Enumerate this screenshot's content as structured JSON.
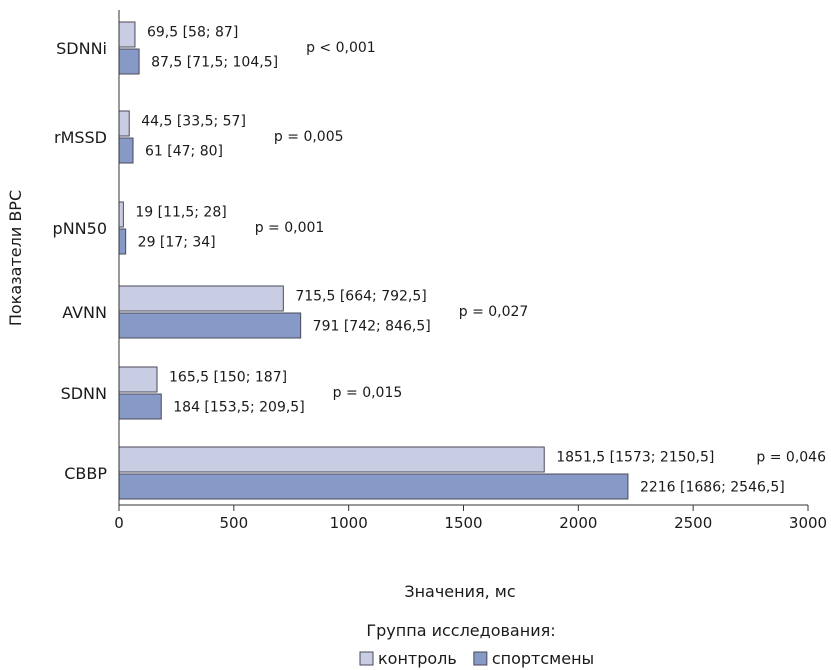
{
  "chart_data": {
    "type": "bar",
    "orientation": "horizontal",
    "xlabel": "Значения, мс",
    "ylabel": "Показатели ВРС",
    "xlim": [
      0,
      3000
    ],
    "x_ticks": [
      "0",
      "500",
      "1000",
      "1500",
      "2000",
      "2500",
      "3000"
    ],
    "grid": false,
    "legend_title": "Группа исследования:",
    "legend_position": "bottom-center",
    "categories": [
      "SDNNi",
      "rMSSD",
      "pNN50",
      "AVNN",
      "SDNN",
      "СВВР"
    ],
    "series": [
      {
        "name": "контроль",
        "color": "#c9cde3",
        "values": [
          69.5,
          44.5,
          19,
          715.5,
          165.5,
          1851.5
        ],
        "labels": [
          "69,5 [58; 87]",
          "44,5 [33,5; 57]",
          "19 [11,5; 28]",
          "715,5 [664; 792,5]",
          "165,5 [150; 187]",
          "1851,5 [1573; 2150,5]"
        ]
      },
      {
        "name": "спортсмены",
        "color": "#8799c6",
        "values": [
          87.5,
          61,
          29,
          791,
          184,
          2216
        ],
        "labels": [
          "87,5 [71,5; 104,5]",
          "61 [47; 80]",
          "29 [17; 34]",
          "791 [742; 846,5]",
          "184 [153,5; 209,5]",
          "2216 [1686; 2546,5]"
        ]
      }
    ],
    "p_values": [
      "p < 0,001",
      "p = 0,005",
      "p = 0,001",
      "p = 0,027",
      "p = 0,015",
      "p = 0,046"
    ]
  }
}
